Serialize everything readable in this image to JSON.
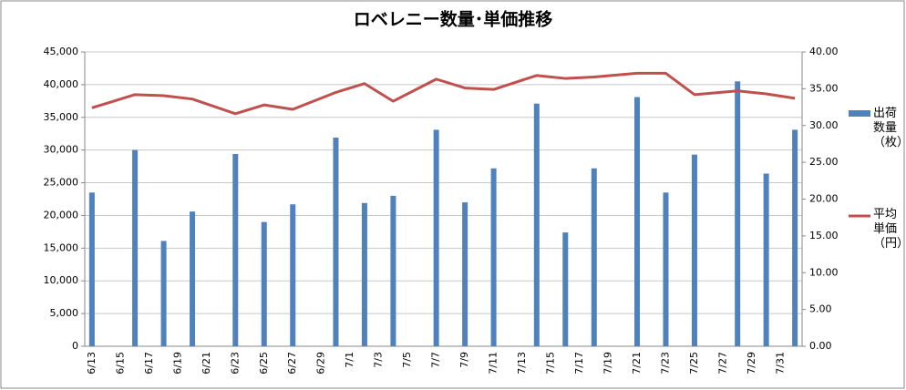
{
  "chart_data": {
    "type": "bar_line",
    "title": "ロベレニー数量･単価推移",
    "categories": [
      "6/13",
      null,
      "6/15",
      null,
      "6/17",
      null,
      "6/19",
      null,
      "6/21",
      null,
      "6/23",
      null,
      "6/25",
      null,
      "6/27",
      null,
      "6/29",
      null,
      "7/1",
      null,
      "7/3",
      null,
      "7/5",
      null,
      "7/7",
      null,
      "7/9",
      null,
      "7/11",
      null,
      "7/13",
      null,
      "7/15",
      null,
      "7/17",
      null,
      "7/19",
      null,
      "7/21",
      null,
      "7/23",
      null,
      "7/25",
      null,
      "7/27",
      null,
      "7/29",
      null,
      "7/31",
      null
    ],
    "series": [
      {
        "name": "出荷数量（枚）",
        "type": "bar",
        "color": "#4f81bd",
        "values": [
          23500,
          null,
          null,
          30000,
          null,
          16100,
          null,
          20600,
          null,
          null,
          29400,
          null,
          19000,
          null,
          21700,
          null,
          null,
          31900,
          null,
          21900,
          null,
          23000,
          null,
          null,
          33100,
          null,
          22000,
          null,
          27200,
          null,
          null,
          37100,
          null,
          17400,
          null,
          27200,
          null,
          null,
          38100,
          null,
          23500,
          null,
          29300,
          null,
          null,
          40500,
          null,
          26400,
          null,
          33100
        ]
      },
      {
        "name": "平均単価（円）",
        "type": "line",
        "axis": "y2",
        "color": "#c0504d",
        "span_gaps": true,
        "values": [
          32.4,
          null,
          null,
          34.2,
          null,
          34.05,
          null,
          33.6,
          null,
          null,
          31.6,
          null,
          32.8,
          null,
          32.2,
          null,
          null,
          34.5,
          null,
          35.7,
          null,
          33.3,
          null,
          null,
          36.3,
          null,
          35.1,
          null,
          34.9,
          null,
          null,
          36.8,
          null,
          36.4,
          null,
          36.6,
          null,
          null,
          37.1,
          null,
          37.1,
          null,
          34.2,
          null,
          null,
          34.7,
          null,
          34.3,
          null,
          33.7
        ]
      }
    ],
    "ylim": [
      0,
      45000
    ],
    "yticks": [
      0,
      {
        "value": 5000,
        "label": "5,000"
      },
      {
        "value": 10000,
        "label": "10,000"
      },
      {
        "value": 15000,
        "label": "15,000"
      },
      {
        "value": 20000,
        "label": "20,000"
      },
      {
        "value": 25000,
        "label": "25,000"
      },
      {
        "value": 30000,
        "label": "30,000"
      },
      {
        "value": 35000,
        "label": "35,000"
      },
      {
        "value": 40000,
        "label": "40,000"
      },
      {
        "value": 45000,
        "label": "45,000"
      }
    ],
    "y2lim": [
      0,
      40
    ],
    "y2ticks": [
      {
        "value": 0,
        "label": "0.00"
      },
      {
        "value": 5,
        "label": "5.00"
      },
      {
        "value": 10,
        "label": "10.00"
      },
      {
        "value": 15,
        "label": "15.00"
      },
      {
        "value": 20,
        "label": "20.00"
      },
      {
        "value": 25,
        "label": "25.00"
      },
      {
        "value": 30,
        "label": "30.00"
      },
      {
        "value": 35,
        "label": "35.00"
      },
      {
        "value": 40,
        "label": "40.00"
      }
    ],
    "grid": true,
    "legend": "right"
  }
}
